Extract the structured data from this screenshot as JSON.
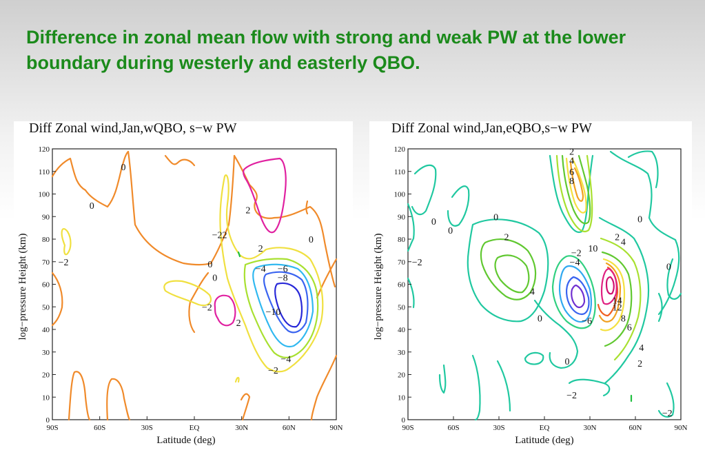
{
  "slide": {
    "title": "Difference in zonal mean flow with strong and weak PW at the lower boundary during westerly and easterly QBO."
  },
  "colors": {
    "title": "#1b8a1b",
    "contour_levels": {
      "-10": "#2828d8",
      "-8": "#3a64f0",
      "-6": "#30a8f0",
      "-4": "#20c8a0",
      "-2": "#30d080",
      "0": "#f08a2a",
      "2": "#f0e040",
      "4": "#a8e030",
      "6": "#60c830",
      "8": "#f4e040",
      "10": "#f0a020",
      "12": "#f06020",
      "14": "#e02080"
    }
  },
  "chart_data": [
    {
      "type": "contour",
      "title": "Diff Zonal wind,Jan,wQBO, s−w PW",
      "xlabel": "Latitude (deg)",
      "ylabel": "log−pressure Height (km)",
      "x_ticks": [
        "90S",
        "60S",
        "30S",
        "EQ",
        "30N",
        "60N",
        "90N"
      ],
      "y_ticks": [
        "0",
        "10",
        "20",
        "30",
        "40",
        "50",
        "60",
        "70",
        "80",
        "90",
        "100",
        "110",
        "120"
      ],
      "xlim": [
        -90,
        90
      ],
      "ylim": [
        0,
        120
      ],
      "contour_labels": [
        {
          "label": "0",
          "lat": -45,
          "z": 112
        },
        {
          "label": "0",
          "lat": -65,
          "z": 95
        },
        {
          "label": "−2",
          "lat": -83,
          "z": 70
        },
        {
          "label": "−22",
          "lat": 16,
          "z": 82
        },
        {
          "label": "2",
          "lat": 34,
          "z": 93
        },
        {
          "label": "2",
          "lat": 42,
          "z": 76
        },
        {
          "label": "0",
          "lat": 74,
          "z": 80
        },
        {
          "label": "0",
          "lat": 10,
          "z": 69
        },
        {
          "label": "0",
          "lat": 13,
          "z": 63
        },
        {
          "label": "−4",
          "lat": 42,
          "z": 67
        },
        {
          "label": "−6",
          "lat": 56,
          "z": 67
        },
        {
          "label": "−8",
          "lat": 56,
          "z": 63
        },
        {
          "label": "−2",
          "lat": 8,
          "z": 50
        },
        {
          "label": "2",
          "lat": 28,
          "z": 43
        },
        {
          "label": "−10",
          "lat": 50,
          "z": 48
        },
        {
          "label": "−4",
          "lat": 58,
          "z": 27
        },
        {
          "label": "−2",
          "lat": 50,
          "z": 22
        }
      ],
      "features": [
        {
          "level": 2,
          "kind": "max",
          "lat": 40,
          "z": 100
        },
        {
          "level": -10,
          "kind": "min",
          "lat": 50,
          "z": 52
        },
        {
          "level": 2,
          "kind": "max",
          "lat": 23,
          "z": 50
        }
      ]
    },
    {
      "type": "contour",
      "title": "Diff Zonal wind,Jan,eQBO,s−w PW",
      "xlabel": "Latitude (deg)",
      "ylabel": "log−pressure Height (km)",
      "x_ticks": [
        "90S",
        "60S",
        "30S",
        "EQ",
        "30N",
        "60N",
        "90N"
      ],
      "y_ticks": [
        "0",
        "10",
        "20",
        "30",
        "40",
        "50",
        "60",
        "70",
        "80",
        "90",
        "100",
        "110",
        "120"
      ],
      "xlim": [
        -90,
        90
      ],
      "ylim": [
        0,
        120
      ],
      "contour_labels": [
        {
          "label": "2",
          "lat": 18,
          "z": 119
        },
        {
          "label": "4",
          "lat": 18,
          "z": 115
        },
        {
          "label": "6",
          "lat": 18,
          "z": 110
        },
        {
          "label": "8",
          "lat": 18,
          "z": 106
        },
        {
          "label": "0",
          "lat": -73,
          "z": 88
        },
        {
          "label": "0",
          "lat": -62,
          "z": 84
        },
        {
          "label": "0",
          "lat": -32,
          "z": 90
        },
        {
          "label": "2",
          "lat": -25,
          "z": 81
        },
        {
          "label": "−2",
          "lat": -84,
          "z": 70
        },
        {
          "label": "0",
          "lat": 63,
          "z": 89
        },
        {
          "label": "2",
          "lat": 48,
          "z": 81
        },
        {
          "label": "4",
          "lat": 52,
          "z": 79
        },
        {
          "label": "10",
          "lat": 32,
          "z": 76
        },
        {
          "label": "−2",
          "lat": 21,
          "z": 74
        },
        {
          "label": "−4",
          "lat": 20,
          "z": 70
        },
        {
          "label": "0",
          "lat": 82,
          "z": 68
        },
        {
          "label": "4",
          "lat": -8,
          "z": 57
        },
        {
          "label": "14",
          "lat": 48,
          "z": 53
        },
        {
          "label": "12",
          "lat": 48,
          "z": 50
        },
        {
          "label": "0",
          "lat": -3,
          "z": 45
        },
        {
          "label": "−6",
          "lat": 28,
          "z": 44
        },
        {
          "label": "8",
          "lat": 52,
          "z": 45
        },
        {
          "label": "6",
          "lat": 56,
          "z": 41
        },
        {
          "label": "4",
          "lat": 64,
          "z": 32
        },
        {
          "label": "0",
          "lat": 15,
          "z": 26
        },
        {
          "label": "2",
          "lat": 63,
          "z": 25
        },
        {
          "label": "−2",
          "lat": 18,
          "z": 11
        },
        {
          "label": "−2",
          "lat": 81,
          "z": 3
        }
      ],
      "features": [
        {
          "level": 14,
          "kind": "max",
          "lat": 48,
          "z": 64
        },
        {
          "level": -6,
          "kind": "min",
          "lat": 24,
          "z": 53
        },
        {
          "level": 4,
          "kind": "max",
          "lat": -30,
          "z": 68
        }
      ]
    }
  ]
}
